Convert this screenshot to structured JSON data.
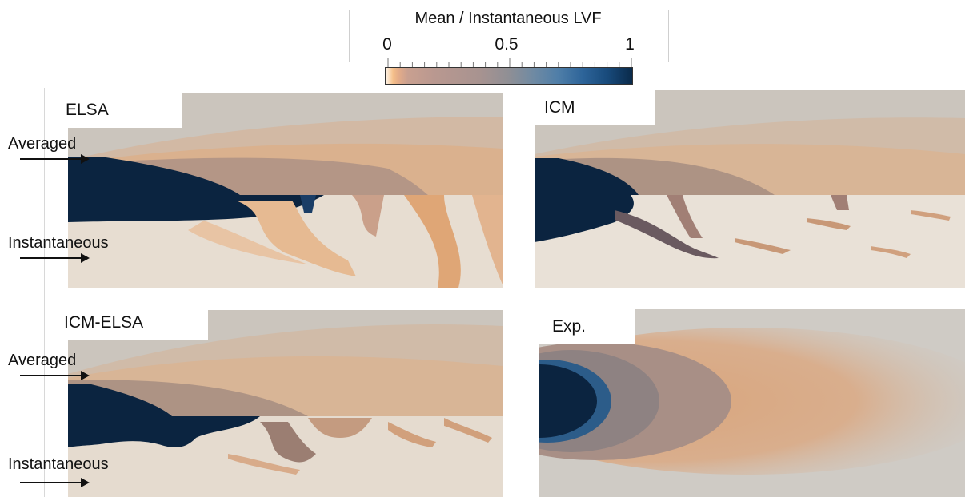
{
  "colorbar": {
    "title": "Mean / Instantaneous LVF",
    "tick_labels": [
      "0",
      "0.5",
      "1"
    ],
    "range": [
      0,
      1
    ],
    "colors": [
      "#fef6ec",
      "#e6ad88",
      "#a89390",
      "#4f7ea8",
      "#0a2a4a"
    ]
  },
  "panels": [
    {
      "label": "ELSA"
    },
    {
      "label": "ICM"
    },
    {
      "label": "ICM-ELSA"
    },
    {
      "label": "Exp."
    }
  ],
  "annotations": {
    "averaged": "Averaged",
    "instantaneous": "Instantaneous"
  }
}
